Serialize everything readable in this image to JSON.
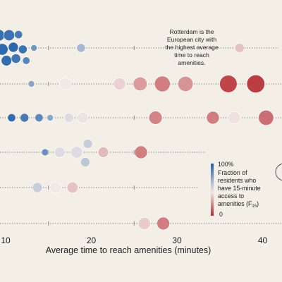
{
  "chart_data": {
    "type": "scatter",
    "xlabel": "Average time to reach amenities (minutes)",
    "xlim": [
      8.5,
      42.5
    ],
    "x_ticks": [
      10,
      20,
      30,
      40
    ],
    "size_encoding": "bubble size",
    "color_scale": {
      "title_lines": [
        "Fraction of",
        "residents who",
        "have 15-minute",
        "access to",
        "amenities (F"
      ],
      "title_subscript": "15",
      "title_end": ")",
      "max_label": "100%",
      "min_label": "0",
      "colors": [
        "#1f5fa8",
        "#f2e8e6",
        "#b52a2f"
      ]
    },
    "annotation": {
      "lines": [
        "Rotterdam is the",
        "European city with",
        "the highest average",
        "time to reach",
        "amenities."
      ],
      "target_row": 0,
      "target_x": 37.3
    },
    "rows": [
      {
        "points": [
          {
            "x": 8.5,
            "f": 0.92,
            "size": 0.75
          },
          {
            "x": 8.7,
            "f": 0.95,
            "size": 0.9
          },
          {
            "x": 8.8,
            "f": 0.93,
            "size": 0.8
          },
          {
            "x": 9.2,
            "f": 0.94,
            "size": 1.0
          },
          {
            "x": 9.6,
            "f": 0.96,
            "size": 1.0
          },
          {
            "x": 10.1,
            "f": 0.95,
            "size": 0.9
          },
          {
            "x": 10.4,
            "f": 0.93,
            "size": 0.95
          },
          {
            "x": 10.9,
            "f": 0.97,
            "size": 0.85
          },
          {
            "x": 11.2,
            "f": 0.92,
            "size": 0.8
          },
          {
            "x": 11.5,
            "f": 0.9,
            "size": 0.7
          },
          {
            "x": 12.0,
            "f": 0.93,
            "size": 0.75
          },
          {
            "x": 12.4,
            "f": 0.86,
            "size": 0.65
          },
          {
            "x": 13.3,
            "f": 0.8,
            "size": 0.55
          },
          {
            "x": 18.8,
            "f": 0.68,
            "size": 0.75
          },
          {
            "x": 37.3,
            "f": 0.4,
            "size": 0.8
          }
        ]
      },
      {
        "points": [
          {
            "x": 13.0,
            "f": 0.75,
            "size": 0.55
          },
          {
            "x": 17.0,
            "f": 0.5,
            "size": 1.05
          },
          {
            "x": 23.3,
            "f": 0.44,
            "size": 1.05
          },
          {
            "x": 25.7,
            "f": 0.3,
            "size": 1.2
          },
          {
            "x": 28.3,
            "f": 0.22,
            "size": 1.35
          },
          {
            "x": 31.0,
            "f": 0.28,
            "size": 1.3
          },
          {
            "x": 36.0,
            "f": 0.07,
            "size": 1.5
          },
          {
            "x": 39.2,
            "f": 0.05,
            "size": 1.55
          }
        ]
      },
      {
        "points": [
          {
            "x": 10.7,
            "f": 0.95,
            "size": 0.7
          },
          {
            "x": 12.2,
            "f": 0.9,
            "size": 0.75
          },
          {
            "x": 13.9,
            "f": 0.85,
            "size": 0.7
          },
          {
            "x": 15.2,
            "f": 0.75,
            "size": 0.55
          },
          {
            "x": 17.4,
            "f": 0.55,
            "size": 0.8
          },
          {
            "x": 19.0,
            "f": 0.52,
            "size": 0.95
          },
          {
            "x": 27.5,
            "f": 0.24,
            "size": 1.15
          },
          {
            "x": 34.2,
            "f": 0.22,
            "size": 1.1
          },
          {
            "x": 36.7,
            "f": 0.48,
            "size": 1.05
          },
          {
            "x": 40.4,
            "f": 0.18,
            "size": 1.3
          }
        ]
      },
      {
        "points": [
          {
            "x": 14.6,
            "f": 0.82,
            "size": 0.6
          },
          {
            "x": 16.3,
            "f": 0.55,
            "size": 0.9
          },
          {
            "x": 18.3,
            "f": 0.55,
            "size": 1.0
          },
          {
            "x": 19.6,
            "f": 0.6,
            "size": 0.8
          },
          {
            "x": 19.3,
            "f": 0.62,
            "size": 0.8
          },
          {
            "x": 21.4,
            "f": 0.38,
            "size": 0.9
          },
          {
            "x": 25.8,
            "f": 0.22,
            "size": 1.1
          }
        ]
      },
      {
        "points": [
          {
            "x": 13.7,
            "f": 0.6,
            "size": 0.85
          },
          {
            "x": 15.8,
            "f": 0.5,
            "size": 0.95
          },
          {
            "x": 17.8,
            "f": 0.4,
            "size": 0.95
          }
        ]
      },
      {
        "points": [
          {
            "x": 26.2,
            "f": 0.42,
            "size": 1.05
          },
          {
            "x": 28.4,
            "f": 0.22,
            "size": 1.1
          }
        ]
      }
    ]
  }
}
